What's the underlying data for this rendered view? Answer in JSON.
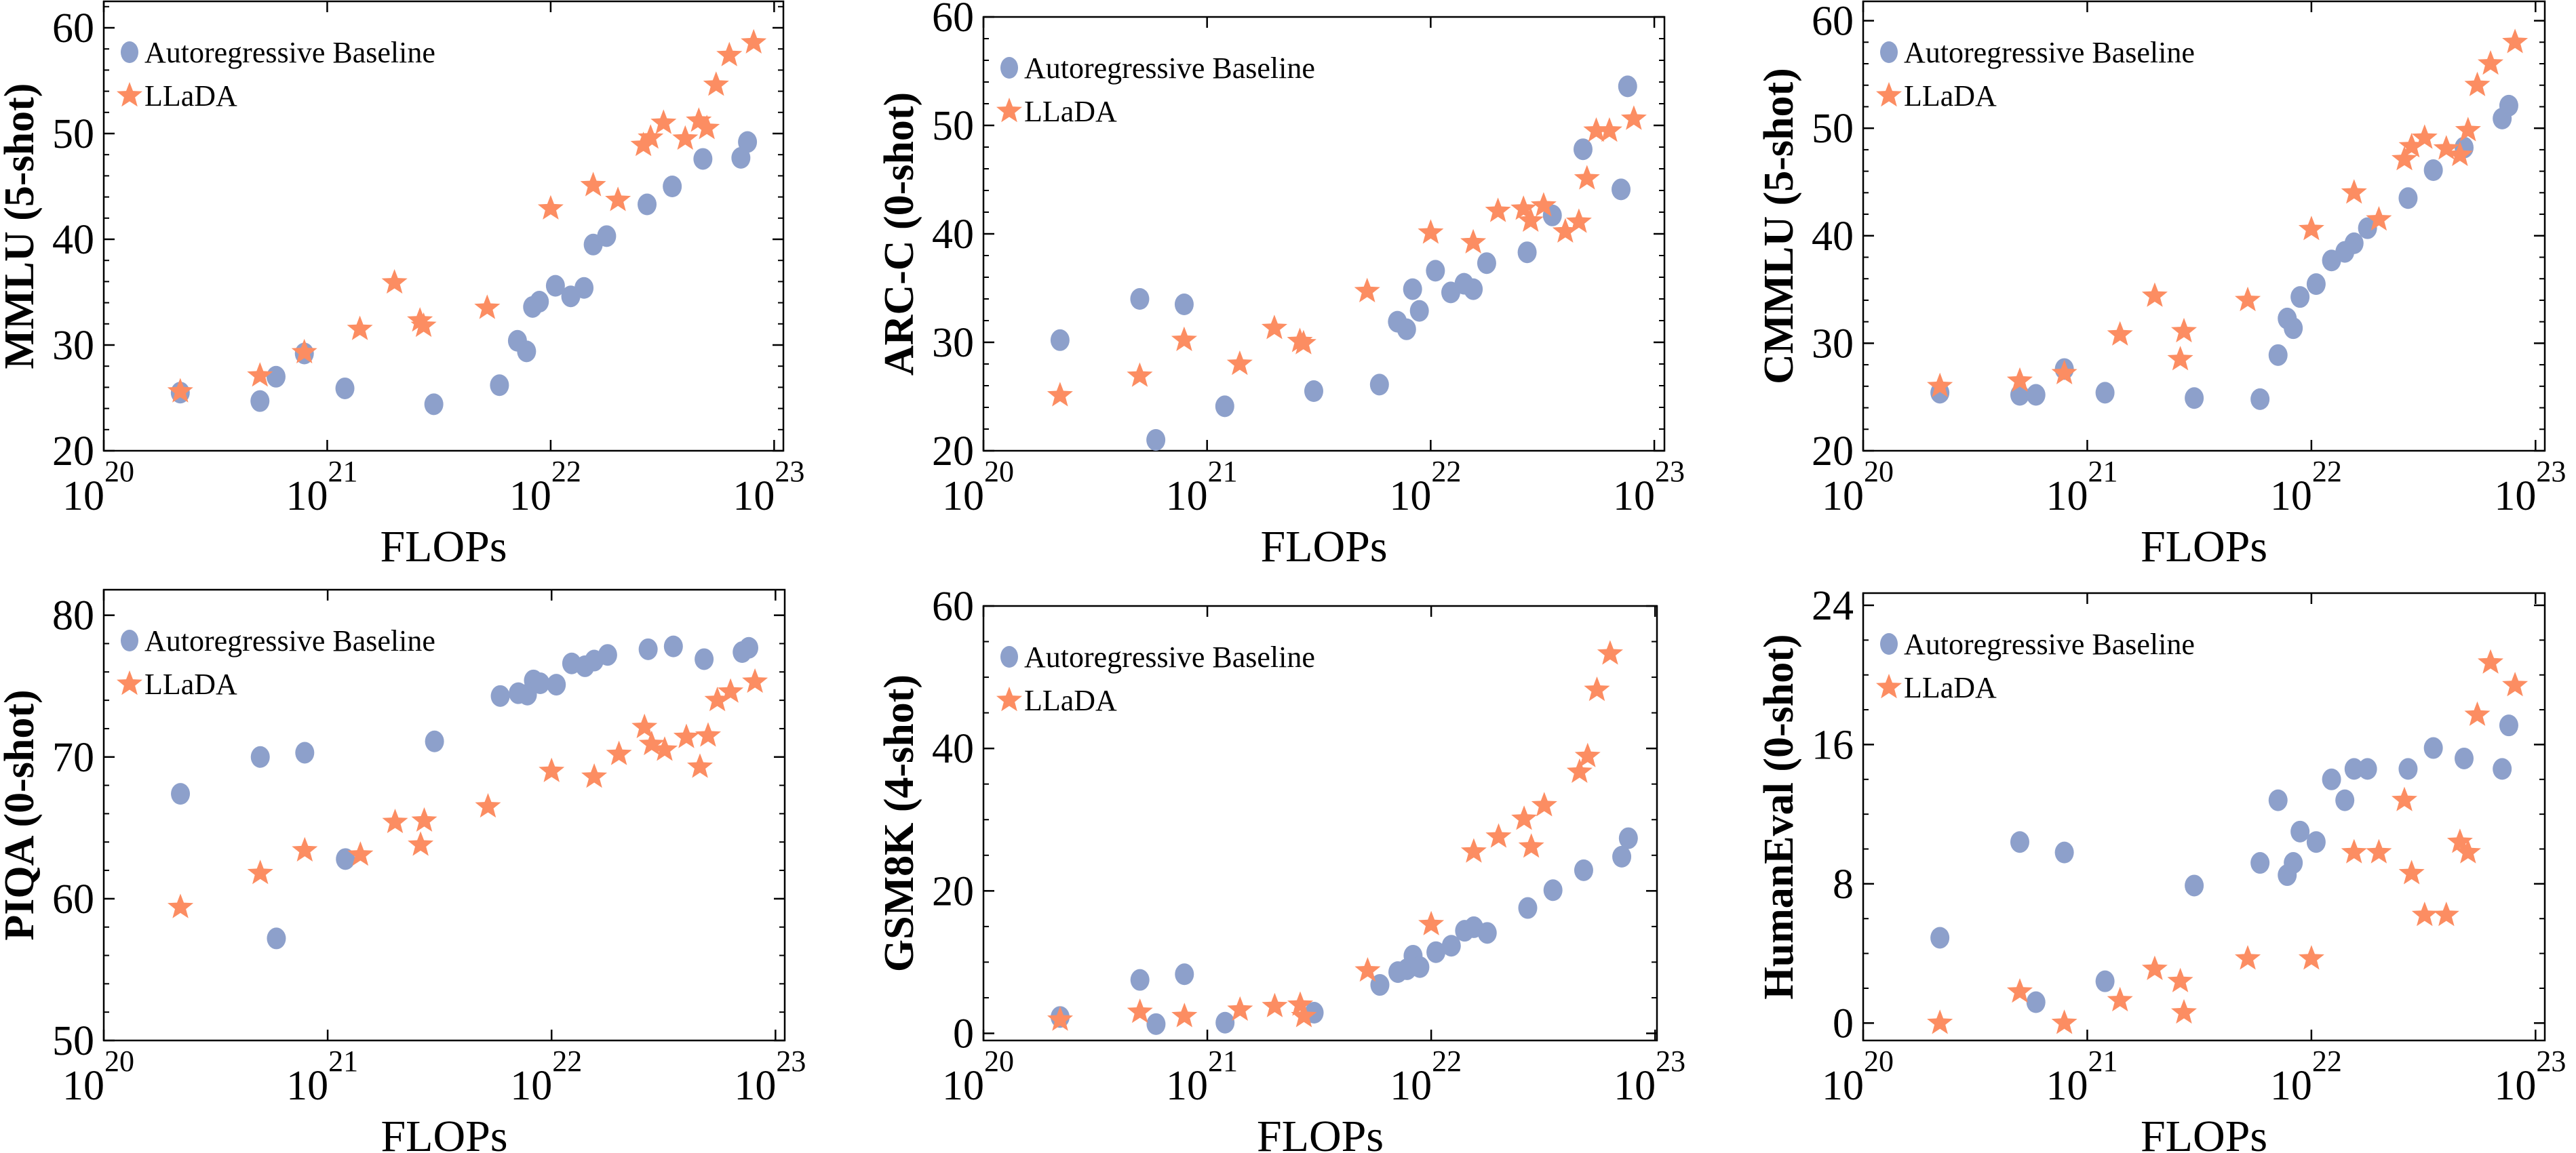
{
  "colors": {
    "baseline": "#8DA0CB",
    "llada": "#FC8D62"
  },
  "chart_data": [
    {
      "type": "scatter",
      "title": "",
      "xlabel": "FLOPs",
      "ylabel": "MMLU (5-shot)",
      "xscale": "log",
      "xlim": [
        1e+20,
        1.1e+23
      ],
      "ylim": [
        20,
        62.5
      ],
      "xticks": [
        {
          "base": "10",
          "exp": "20",
          "value": 1e+20
        },
        {
          "base": "10",
          "exp": "21",
          "value": 1e+21
        },
        {
          "base": "10",
          "exp": "22",
          "value": 1e+22
        },
        {
          "base": "10",
          "exp": "23",
          "value": 1e+23
        }
      ],
      "yticks": [
        "20",
        "30",
        "40",
        "50",
        "60"
      ],
      "grid": false,
      "legend": "top-left",
      "series": [
        {
          "name": "Autoregressive Baseline",
          "marker": "circle",
          "color": "#8DA0CB",
          "x": [
            2.2e+20,
            5e+20,
            5.9e+20,
            7.9e+20,
            1.2e+21,
            3e+21,
            5.9e+21,
            7.1e+21,
            7.8e+21,
            8.3e+21,
            8.9e+21,
            1.05e+22,
            1.23e+22,
            1.41e+22,
            1.55e+22,
            1.78e+22,
            2.7e+22,
            3.5e+22,
            4.8e+22,
            7.1e+22,
            7.6e+22
          ],
          "y": [
            25.5,
            24.7,
            27.0,
            29.2,
            25.9,
            24.4,
            26.2,
            30.4,
            29.4,
            33.6,
            34.1,
            35.6,
            34.6,
            35.4,
            39.5,
            40.3,
            43.3,
            45.0,
            47.6,
            47.7,
            49.2
          ]
        },
        {
          "name": "LLaDA",
          "marker": "star",
          "color": "#FC8D62",
          "x": [
            2.2e+20,
            5e+20,
            7.9e+20,
            1.4e+21,
            2e+21,
            2.6e+21,
            2.7e+21,
            5.2e+21,
            1e+22,
            1.55e+22,
            2e+22,
            2.6e+22,
            2.8e+22,
            3.2e+22,
            4e+22,
            4.6e+22,
            5e+22,
            5.5e+22,
            6.3e+22,
            8.1e+22
          ],
          "y": [
            25.6,
            27.1,
            29.3,
            31.5,
            35.9,
            32.3,
            31.8,
            33.5,
            42.9,
            45.1,
            43.7,
            48.9,
            49.6,
            51.0,
            49.5,
            51.2,
            50.5,
            54.6,
            57.4,
            58.6
          ]
        }
      ]
    },
    {
      "type": "scatter",
      "title": "",
      "xlabel": "FLOPs",
      "ylabel": "ARC-C (0-shot)",
      "xscale": "log",
      "xlim": [
        1e+20,
        1.11e+23
      ],
      "ylim": [
        20,
        60
      ],
      "xticks": [
        {
          "base": "10",
          "exp": "20",
          "value": 1e+20
        },
        {
          "base": "10",
          "exp": "21",
          "value": 1e+21
        },
        {
          "base": "10",
          "exp": "22",
          "value": 1e+22
        },
        {
          "base": "10",
          "exp": "23",
          "value": 1e+23
        }
      ],
      "yticks": [
        "20",
        "30",
        "40",
        "50",
        "60"
      ],
      "grid": false,
      "legend": "top-left",
      "series": [
        {
          "name": "Autoregressive Baseline",
          "marker": "circle",
          "color": "#8DA0CB",
          "x": [
            2.2e+20,
            5e+20,
            5.9e+20,
            7.9e+20,
            1.2e+21,
            3e+21,
            5.9e+21,
            7.1e+21,
            7.8e+21,
            8.3e+21,
            8.9e+21,
            1.05e+22,
            1.23e+22,
            1.41e+22,
            1.55e+22,
            1.78e+22,
            2.7e+22,
            3.5e+22,
            4.8e+22,
            7.1e+22,
            7.6e+22
          ],
          "y": [
            30.2,
            34.0,
            21.0,
            33.5,
            24.1,
            25.5,
            26.1,
            31.9,
            31.2,
            34.9,
            32.9,
            36.6,
            34.6,
            35.4,
            34.9,
            37.3,
            38.3,
            41.7,
            47.8,
            44.1,
            53.6
          ]
        },
        {
          "name": "LLaDA",
          "marker": "star",
          "color": "#FC8D62",
          "x": [
            2.2e+20,
            5e+20,
            7.9e+20,
            1.4e+21,
            2e+21,
            2.6e+21,
            2.7e+21,
            5.2e+21,
            1e+22,
            1.55e+22,
            2e+22,
            2.6e+22,
            2.8e+22,
            3.2e+22,
            4e+22,
            4.6e+22,
            5e+22,
            5.5e+22,
            6.3e+22,
            8.1e+22
          ],
          "y": [
            25.1,
            26.9,
            30.2,
            28.0,
            31.3,
            30.1,
            29.9,
            34.7,
            40.1,
            39.2,
            42.1,
            42.3,
            41.2,
            42.6,
            40.2,
            41.1,
            45.1,
            49.5,
            49.5,
            50.6
          ]
        }
      ]
    },
    {
      "type": "scatter",
      "title": "",
      "xlabel": "FLOPs",
      "ylabel": "CMMLU (5-shot)",
      "xscale": "log",
      "xlim": [
        1e+20,
        1.1e+23
      ],
      "ylim": [
        20,
        61.8
      ],
      "xticks": [
        {
          "base": "10",
          "exp": "20",
          "value": 1e+20
        },
        {
          "base": "10",
          "exp": "21",
          "value": 1e+21
        },
        {
          "base": "10",
          "exp": "22",
          "value": 1e+22
        },
        {
          "base": "10",
          "exp": "23",
          "value": 1e+23
        }
      ],
      "yticks": [
        "20",
        "30",
        "40",
        "50",
        "60"
      ],
      "grid": false,
      "legend": "top-left",
      "series": [
        {
          "name": "Autoregressive Baseline",
          "marker": "circle",
          "color": "#8DA0CB",
          "x": [
            2.2e+20,
            5e+20,
            5.9e+20,
            7.9e+20,
            1.2e+21,
            3e+21,
            5.9e+21,
            7.1e+21,
            7.8e+21,
            8.3e+21,
            8.9e+21,
            1.05e+22,
            1.23e+22,
            1.41e+22,
            1.55e+22,
            1.78e+22,
            2.7e+22,
            3.5e+22,
            4.8e+22,
            7.1e+22,
            7.6e+22
          ],
          "y": [
            25.4,
            25.2,
            25.2,
            27.6,
            25.4,
            24.9,
            24.8,
            28.9,
            32.3,
            31.4,
            34.3,
            35.5,
            37.7,
            38.5,
            39.3,
            40.7,
            43.5,
            46.1,
            48.2,
            50.9,
            52.1
          ]
        },
        {
          "name": "LLaDA",
          "marker": "star",
          "color": "#FC8D62",
          "x": [
            2.2e+20,
            5e+20,
            7.9e+20,
            1.4e+21,
            2e+21,
            2.6e+21,
            2.7e+21,
            5.2e+21,
            1e+22,
            1.55e+22,
            2e+22,
            2.6e+22,
            2.8e+22,
            3.2e+22,
            4e+22,
            4.6e+22,
            5e+22,
            5.5e+22,
            6.3e+22,
            8.1e+22
          ],
          "y": [
            26.0,
            26.5,
            27.2,
            30.8,
            34.4,
            28.5,
            31.1,
            34.0,
            40.6,
            44.0,
            41.5,
            47.1,
            48.3,
            49.1,
            48.1,
            47.5,
            49.8,
            54.0,
            56.0,
            58.0
          ]
        }
      ]
    },
    {
      "type": "scatter",
      "title": "",
      "xlabel": "FLOPs",
      "ylabel": "PIQA (0-shot)",
      "xscale": "log",
      "xlim": [
        1e+20,
        1.1e+23
      ],
      "ylim": [
        50,
        81.8
      ],
      "xticks": [
        {
          "base": "10",
          "exp": "20",
          "value": 1e+20
        },
        {
          "base": "10",
          "exp": "21",
          "value": 1e+21
        },
        {
          "base": "10",
          "exp": "22",
          "value": 1e+22
        },
        {
          "base": "10",
          "exp": "23",
          "value": 1e+23
        }
      ],
      "yticks": [
        "50",
        "60",
        "70",
        "80"
      ],
      "grid": false,
      "legend": "top-left",
      "series": [
        {
          "name": "Autoregressive Baseline",
          "marker": "circle",
          "color": "#8DA0CB",
          "x": [
            2.2e+20,
            5e+20,
            5.9e+20,
            7.9e+20,
            1.2e+21,
            3e+21,
            5.9e+21,
            7.1e+21,
            7.8e+21,
            8.3e+21,
            8.9e+21,
            1.05e+22,
            1.23e+22,
            1.41e+22,
            1.55e+22,
            1.78e+22,
            2.7e+22,
            3.5e+22,
            4.8e+22,
            7.1e+22,
            7.6e+22
          ],
          "y": [
            67.4,
            70.0,
            57.2,
            70.3,
            62.8,
            71.1,
            74.3,
            74.5,
            74.4,
            75.4,
            75.2,
            75.1,
            76.6,
            76.4,
            76.8,
            77.2,
            77.6,
            77.8,
            76.9,
            77.4,
            77.7
          ]
        },
        {
          "name": "LLaDA",
          "marker": "star",
          "color": "#FC8D62",
          "x": [
            2.2e+20,
            5e+20,
            7.9e+20,
            1.4e+21,
            2e+21,
            2.6e+21,
            2.7e+21,
            5.2e+21,
            1e+22,
            1.55e+22,
            2e+22,
            2.6e+22,
            2.8e+22,
            3.2e+22,
            4e+22,
            4.6e+22,
            5e+22,
            5.5e+22,
            6.3e+22,
            8.1e+22
          ],
          "y": [
            59.4,
            61.8,
            63.4,
            63.1,
            65.4,
            63.8,
            65.5,
            66.5,
            69.0,
            68.6,
            70.2,
            72.1,
            70.9,
            70.5,
            71.4,
            69.3,
            71.5,
            74.0,
            74.6,
            75.3
          ]
        }
      ]
    },
    {
      "type": "scatter",
      "title": "",
      "xlabel": "FLOPs",
      "ylabel": "GSM8K (4-shot)",
      "xscale": "log",
      "xlim": [
        1e+20,
        1.02e+23
      ],
      "ylim": [
        -1,
        60
      ],
      "xticks": [
        {
          "base": "10",
          "exp": "20",
          "value": 1e+20
        },
        {
          "base": "10",
          "exp": "21",
          "value": 1e+21
        },
        {
          "base": "10",
          "exp": "22",
          "value": 1e+22
        },
        {
          "base": "10",
          "exp": "23",
          "value": 1e+23
        }
      ],
      "yticks": [
        "0",
        "20",
        "40",
        "60"
      ],
      "grid": false,
      "legend": "top-left",
      "series": [
        {
          "name": "Autoregressive Baseline",
          "marker": "circle",
          "color": "#8DA0CB",
          "x": [
            2.2e+20,
            5e+20,
            5.9e+20,
            7.9e+20,
            1.2e+21,
            3e+21,
            5.9e+21,
            7.1e+21,
            7.8e+21,
            8.3e+21,
            8.9e+21,
            1.05e+22,
            1.23e+22,
            1.41e+22,
            1.55e+22,
            1.78e+22,
            2.7e+22,
            3.5e+22,
            4.8e+22,
            7.1e+22,
            7.6e+22
          ],
          "y": [
            2.3,
            7.5,
            1.3,
            8.3,
            1.5,
            2.9,
            6.8,
            8.6,
            9.0,
            10.9,
            9.3,
            11.4,
            12.3,
            14.4,
            14.9,
            14.1,
            17.6,
            20.1,
            22.9,
            24.8,
            27.4
          ]
        },
        {
          "name": "LLaDA",
          "marker": "star",
          "color": "#FC8D62",
          "x": [
            2.2e+20,
            5e+20,
            7.9e+20,
            1.4e+21,
            2e+21,
            2.6e+21,
            2.7e+21,
            5.2e+21,
            1e+22,
            1.55e+22,
            2e+22,
            2.6e+22,
            2.8e+22,
            3.2e+22,
            4.6e+22,
            5e+22,
            5.5e+22,
            6.3e+22
          ],
          "y": [
            1.9,
            3.0,
            2.4,
            3.3,
            3.8,
            4.0,
            2.4,
            8.8,
            15.3,
            25.5,
            27.6,
            30.1,
            26.2,
            32.0,
            36.7,
            38.9,
            48.2,
            53.3
          ]
        }
      ]
    },
    {
      "type": "scatter",
      "title": "",
      "xlabel": "FLOPs",
      "ylabel": "HumanEval (0-shot)",
      "xscale": "log",
      "xlim": [
        1e+20,
        1.1e+23
      ],
      "ylim": [
        -1,
        24.7
      ],
      "xticks": [
        {
          "base": "10",
          "exp": "20",
          "value": 1e+20
        },
        {
          "base": "10",
          "exp": "21",
          "value": 1e+21
        },
        {
          "base": "10",
          "exp": "22",
          "value": 1e+22
        },
        {
          "base": "10",
          "exp": "23",
          "value": 1e+23
        }
      ],
      "yticks": [
        "0",
        "8",
        "16",
        "24"
      ],
      "grid": false,
      "legend": "top-left",
      "series": [
        {
          "name": "Autoregressive Baseline",
          "marker": "circle",
          "color": "#8DA0CB",
          "x": [
            2.2e+20,
            5e+20,
            5.9e+20,
            7.9e+20,
            1.2e+21,
            3e+21,
            5.9e+21,
            7.1e+21,
            7.8e+21,
            8.3e+21,
            8.9e+21,
            1.05e+22,
            1.23e+22,
            1.41e+22,
            1.55e+22,
            1.78e+22,
            2.7e+22,
            3.5e+22,
            4.8e+22,
            7.1e+22,
            7.6e+22
          ],
          "y": [
            4.9,
            10.4,
            1.2,
            9.8,
            2.4,
            7.9,
            9.2,
            12.8,
            8.5,
            9.2,
            11.0,
            10.4,
            14.0,
            12.8,
            14.6,
            14.6,
            14.6,
            15.8,
            15.2,
            14.6,
            17.1
          ]
        },
        {
          "name": "LLaDA",
          "marker": "star",
          "color": "#FC8D62",
          "x": [
            2.2e+20,
            5e+20,
            7.9e+20,
            1.4e+21,
            2e+21,
            2.6e+21,
            2.7e+21,
            5.2e+21,
            1e+22,
            1.55e+22,
            2e+22,
            2.6e+22,
            2.8e+22,
            3.2e+22,
            4e+22,
            4.6e+22,
            5e+22,
            5.5e+22,
            6.3e+22,
            8.1e+22
          ],
          "y": [
            0.0,
            1.8,
            0.0,
            1.3,
            3.1,
            2.4,
            0.6,
            3.7,
            3.7,
            9.8,
            9.8,
            12.8,
            8.6,
            6.2,
            6.2,
            10.4,
            9.8,
            17.7,
            20.7,
            19.4
          ]
        }
      ]
    }
  ]
}
